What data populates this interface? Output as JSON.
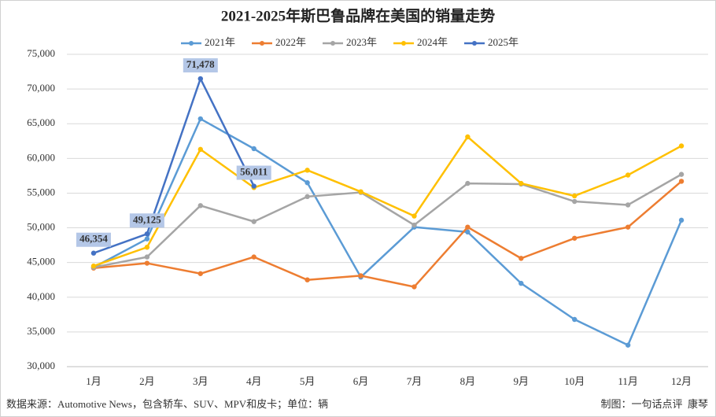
{
  "chart_data": {
    "type": "line",
    "title": "2021-2025年斯巴鲁品牌在美国的销量走势",
    "categories": [
      "1月",
      "2月",
      "3月",
      "4月",
      "5月",
      "6月",
      "7月",
      "8月",
      "9月",
      "10月",
      "11月",
      "12月"
    ],
    "series": [
      {
        "name": "2021年",
        "color": "#5b9bd5",
        "values": [
          44300,
          48400,
          65700,
          61400,
          56500,
          42900,
          50100,
          49400,
          42000,
          36800,
          33100,
          51100
        ]
      },
      {
        "name": "2022年",
        "color": "#ed7d31",
        "values": [
          44200,
          44900,
          43400,
          45800,
          42500,
          43100,
          41500,
          50100,
          45600,
          48500,
          50100,
          56700
        ]
      },
      {
        "name": "2023年",
        "color": "#a5a5a5",
        "values": [
          44300,
          45800,
          53200,
          50900,
          54500,
          55100,
          50400,
          56400,
          56300,
          53800,
          53300,
          57700
        ]
      },
      {
        "name": "2024年",
        "color": "#ffc000",
        "values": [
          44500,
          47200,
          61300,
          55800,
          58300,
          55200,
          51700,
          63100,
          56400,
          54600,
          57600,
          61800
        ]
      },
      {
        "name": "2025年",
        "color": "#4472c4",
        "values": [
          46354,
          49125,
          71478,
          56011,
          null,
          null,
          null,
          null,
          null,
          null,
          null,
          null
        ],
        "value_labels": [
          "46,354",
          "49,125",
          "71,478",
          "56,011",
          null,
          null,
          null,
          null,
          null,
          null,
          null,
          null
        ]
      }
    ],
    "ylim": [
      30000,
      75000
    ],
    "yticks": [
      {
        "value": 30000,
        "label": "30,000"
      },
      {
        "value": 35000,
        "label": "35,000"
      },
      {
        "value": 40000,
        "label": "40,000"
      },
      {
        "value": 45000,
        "label": "45,000"
      },
      {
        "value": 50000,
        "label": "50,000"
      },
      {
        "value": 55000,
        "label": "55,000"
      },
      {
        "value": 60000,
        "label": "60,000"
      },
      {
        "value": 65000,
        "label": "65,000"
      },
      {
        "value": 70000,
        "label": "70,000"
      },
      {
        "value": 75000,
        "label": "75,000"
      }
    ],
    "grid": true,
    "legend": "top",
    "source": "数据来源：Automotive News，包含轿车、SUV、MPV和皮卡；单位：辆",
    "credit": "制图：一句话点评  康琴"
  }
}
